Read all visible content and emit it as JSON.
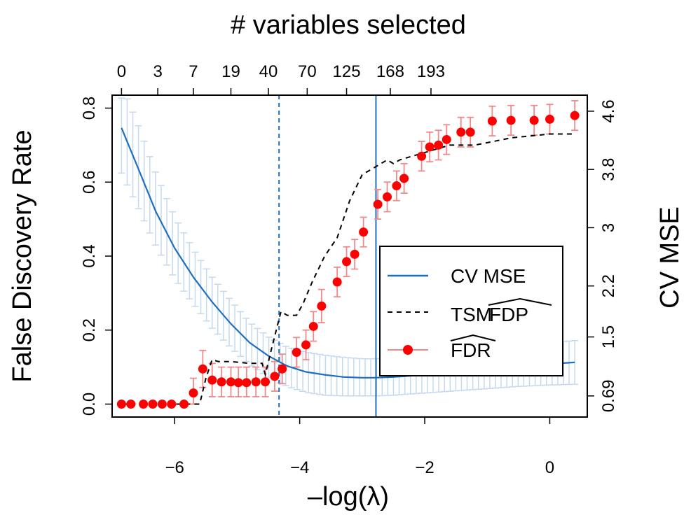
{
  "chart_data": {
    "type": "line",
    "title": "# variables selected",
    "xlabel": "–log(λ)",
    "ylabel": "False Discovery Rate",
    "y2label": "CV MSE",
    "xlim": [
      -7.0,
      0.6
    ],
    "ylim": [
      -0.035,
      0.835
    ],
    "y2lim": [
      0.4,
      4.82
    ],
    "x_ticks": [
      "-6",
      "-4",
      "-2",
      "0"
    ],
    "x_tick_values": [
      -6,
      -4,
      -2,
      0
    ],
    "y_ticks": [
      "0.0",
      "0.2",
      "0.4",
      "0.6",
      "0.8"
    ],
    "y_tick_values": [
      0,
      0.2,
      0.4,
      0.6,
      0.8
    ],
    "y2_ticks": [
      "0.69",
      "1.5",
      "2.2",
      "3",
      "3.8",
      "4.6"
    ],
    "y2_tick_values": [
      0.69,
      1.5,
      2.2,
      3.0,
      3.8,
      4.6
    ],
    "top_ticks": [
      "0",
      "3",
      "7",
      "19",
      "40",
      "70",
      "125",
      "168",
      "193"
    ],
    "top_tick_values": [
      -6.85,
      -6.27,
      -5.7,
      -5.1,
      -4.5,
      -3.88,
      -3.25,
      -2.55,
      -1.9
    ],
    "vlines": [
      {
        "x": -4.33,
        "style": "dashed",
        "color": "#1f6fbf"
      },
      {
        "x": -2.78,
        "style": "solid",
        "color": "#1f6fbf"
      }
    ],
    "legend": {
      "position": "center-right",
      "cv_mse": "CV MSE",
      "tsm_prefix": "TSM",
      "fdp": "FDP",
      "fdr": "FDR"
    },
    "series": [
      {
        "name": "CV MSE",
        "color": "#1f6fbf",
        "axis": "right",
        "x": [
          -6.85,
          -6.6,
          -6.3,
          -6.0,
          -5.7,
          -5.4,
          -5.1,
          -4.8,
          -4.5,
          -4.2,
          -3.9,
          -3.6,
          -3.3,
          -3.0,
          -2.8,
          -2.5,
          -2.0,
          -1.5,
          -1.0,
          -0.5,
          0.0,
          0.4
        ],
        "values": [
          4.37,
          3.85,
          3.22,
          2.72,
          2.32,
          1.98,
          1.68,
          1.42,
          1.24,
          1.1,
          1.02,
          0.98,
          0.95,
          0.94,
          0.94,
          0.95,
          0.98,
          1.02,
          1.06,
          1.1,
          1.13,
          1.15
        ],
        "error_low": [
          3.75,
          3.3,
          2.75,
          2.3,
          1.95,
          1.62,
          1.35,
          1.12,
          0.95,
          0.82,
          0.74,
          0.7,
          0.69,
          0.69,
          0.69,
          0.7,
          0.73,
          0.76,
          0.79,
          0.82,
          0.84,
          0.85
        ],
        "error_high": [
          4.95,
          4.45,
          3.75,
          3.15,
          2.7,
          2.32,
          2.0,
          1.7,
          1.5,
          1.36,
          1.29,
          1.25,
          1.22,
          1.2,
          1.2,
          1.22,
          1.25,
          1.29,
          1.34,
          1.38,
          1.42,
          1.45
        ]
      },
      {
        "name": "TSM FDP",
        "color": "#000000",
        "style": "dashed",
        "axis": "left",
        "x": [
          -6.85,
          -5.6,
          -5.5,
          -5.4,
          -5.3,
          -5.1,
          -4.8,
          -4.6,
          -4.55,
          -4.45,
          -4.3,
          -4.2,
          -4.05,
          -3.95,
          -3.8,
          -3.6,
          -3.4,
          -3.2,
          -3.0,
          -2.8,
          -2.6,
          -2.5,
          -2.4,
          -2.2,
          -2.0,
          -1.8,
          -1.6,
          -1.2,
          -0.9,
          -0.6,
          -0.3,
          0.0,
          0.4
        ],
        "values": [
          0.0,
          0.0,
          0.07,
          0.12,
          0.115,
          0.115,
          0.11,
          0.11,
          0.08,
          0.15,
          0.25,
          0.24,
          0.24,
          0.27,
          0.33,
          0.4,
          0.45,
          0.55,
          0.62,
          0.64,
          0.66,
          0.65,
          0.66,
          0.67,
          0.68,
          0.69,
          0.7,
          0.7,
          0.71,
          0.72,
          0.725,
          0.73,
          0.73
        ]
      },
      {
        "name": "FDR",
        "color": "#ff0000",
        "axis": "left",
        "x": [
          -6.85,
          -6.7,
          -6.5,
          -6.35,
          -6.2,
          -6.05,
          -5.85,
          -5.7,
          -5.55,
          -5.4,
          -5.25,
          -5.1,
          -4.98,
          -4.85,
          -4.7,
          -4.55,
          -4.4,
          -4.28,
          -4.05,
          -3.9,
          -3.78,
          -3.65,
          -3.4,
          -3.25,
          -3.12,
          -2.98,
          -2.75,
          -2.6,
          -2.45,
          -2.33,
          -2.05,
          -1.92,
          -1.78,
          -1.65,
          -1.42,
          -1.27,
          -0.92,
          -0.62,
          -0.25,
          0.0,
          0.4
        ],
        "values": [
          0.0,
          0.0,
          0.0,
          0.0,
          0.0,
          0.0,
          0.0,
          0.03,
          0.095,
          0.065,
          0.06,
          0.06,
          0.058,
          0.058,
          0.06,
          0.06,
          0.075,
          0.095,
          0.14,
          0.16,
          0.21,
          0.265,
          0.33,
          0.385,
          0.405,
          0.465,
          0.54,
          0.56,
          0.59,
          0.61,
          0.67,
          0.695,
          0.7,
          0.715,
          0.735,
          0.735,
          0.765,
          0.767,
          0.767,
          0.77,
          0.78
        ],
        "error_low": [
          0.0,
          0.0,
          0.0,
          0.0,
          0.0,
          0.0,
          0.0,
          0.0,
          0.045,
          0.02,
          0.02,
          0.02,
          0.02,
          0.02,
          0.02,
          0.02,
          0.035,
          0.055,
          0.1,
          0.12,
          0.17,
          0.22,
          0.29,
          0.345,
          0.365,
          0.425,
          0.5,
          0.52,
          0.55,
          0.57,
          0.63,
          0.655,
          0.66,
          0.675,
          0.695,
          0.695,
          0.725,
          0.727,
          0.727,
          0.73,
          0.74
        ],
        "error_high": [
          0.0,
          0.0,
          0.0,
          0.0,
          0.0,
          0.0,
          0.0,
          0.07,
          0.145,
          0.11,
          0.1,
          0.1,
          0.1,
          0.1,
          0.1,
          0.1,
          0.115,
          0.135,
          0.18,
          0.2,
          0.25,
          0.31,
          0.37,
          0.425,
          0.445,
          0.505,
          0.58,
          0.6,
          0.63,
          0.65,
          0.71,
          0.735,
          0.74,
          0.755,
          0.775,
          0.775,
          0.805,
          0.807,
          0.807,
          0.81,
          0.82
        ]
      }
    ]
  }
}
